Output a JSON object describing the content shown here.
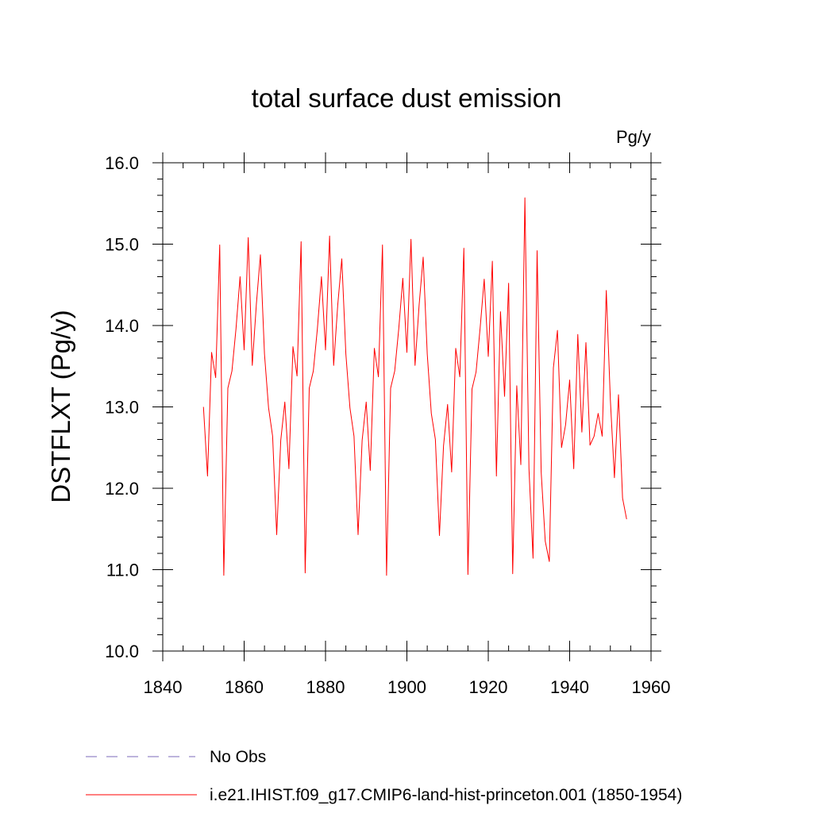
{
  "chart_data": {
    "type": "line",
    "title": "total surface dust emission",
    "units": "Pg/y",
    "xlabel": "",
    "ylabel": "DSTFLXT  (Pg/y)",
    "xlim": [
      1840,
      1960
    ],
    "ylim": [
      10.0,
      16.0
    ],
    "x_ticks": [
      1840,
      1860,
      1880,
      1900,
      1920,
      1940,
      1960
    ],
    "x_tick_labels": [
      "1840",
      "1860",
      "1880",
      "1900",
      "1920",
      "1940",
      "1960"
    ],
    "y_ticks": [
      10,
      11,
      12,
      13,
      14,
      15,
      16
    ],
    "y_tick_labels": [
      "10.0",
      "11.0",
      "12.0",
      "13.0",
      "14.0",
      "15.0",
      "16.0"
    ],
    "grid": false,
    "legend_position": "bottom-left, below plot",
    "series": [
      {
        "name": "No Obs",
        "color": "#7b68b8",
        "style": "dashed",
        "x": [],
        "values": []
      },
      {
        "name": "i.e21.IHIST.f09_g17.CMIP6-land-hist-princeton.001 (1850-1954)",
        "color": "#ff0000",
        "style": "solid",
        "x": [
          1850,
          1851,
          1852,
          1853,
          1854,
          1855,
          1856,
          1857,
          1858,
          1859,
          1860,
          1861,
          1862,
          1863,
          1864,
          1865,
          1866,
          1867,
          1868,
          1869,
          1870,
          1871,
          1872,
          1873,
          1874,
          1875,
          1876,
          1877,
          1878,
          1879,
          1880,
          1881,
          1882,
          1883,
          1884,
          1885,
          1886,
          1887,
          1888,
          1889,
          1890,
          1891,
          1892,
          1893,
          1894,
          1895,
          1896,
          1897,
          1898,
          1899,
          1900,
          1901,
          1902,
          1903,
          1904,
          1905,
          1906,
          1907,
          1908,
          1909,
          1910,
          1911,
          1912,
          1913,
          1914,
          1915,
          1916,
          1917,
          1918,
          1919,
          1920,
          1921,
          1922,
          1923,
          1924,
          1925,
          1926,
          1927,
          1928,
          1929,
          1930,
          1931,
          1932,
          1933,
          1934,
          1935,
          1936,
          1937,
          1938,
          1939,
          1940,
          1941,
          1942,
          1943,
          1944,
          1945,
          1946,
          1947,
          1948,
          1949,
          1950,
          1951,
          1952,
          1953,
          1954
        ],
        "values": [
          13.0,
          12.15,
          13.67,
          13.36,
          14.99,
          10.93,
          13.23,
          13.44,
          13.96,
          14.6,
          13.7,
          15.08,
          13.51,
          14.26,
          14.87,
          13.65,
          12.99,
          12.64,
          11.43,
          12.59,
          13.06,
          12.24,
          13.74,
          13.38,
          15.03,
          10.96,
          13.23,
          13.44,
          13.96,
          14.6,
          13.7,
          15.1,
          13.51,
          14.25,
          14.82,
          13.65,
          12.99,
          12.64,
          11.43,
          12.59,
          13.06,
          12.22,
          13.72,
          13.37,
          14.99,
          10.93,
          13.23,
          13.44,
          13.96,
          14.58,
          13.67,
          15.06,
          13.51,
          14.25,
          14.84,
          13.65,
          12.92,
          12.6,
          11.42,
          12.52,
          13.03,
          12.2,
          13.72,
          13.37,
          14.95,
          10.94,
          13.22,
          13.43,
          13.97,
          14.57,
          13.62,
          14.79,
          12.15,
          14.17,
          13.13,
          14.52,
          10.95,
          13.26,
          12.29,
          15.57,
          12.24,
          11.14,
          14.92,
          12.2,
          11.35,
          11.1,
          13.48,
          13.94,
          12.5,
          12.78,
          13.33,
          12.24,
          13.89,
          12.69,
          13.79,
          12.53,
          12.64,
          12.92,
          12.64,
          14.43,
          13.09,
          12.13,
          13.15,
          11.88,
          11.62
        ]
      }
    ]
  }
}
